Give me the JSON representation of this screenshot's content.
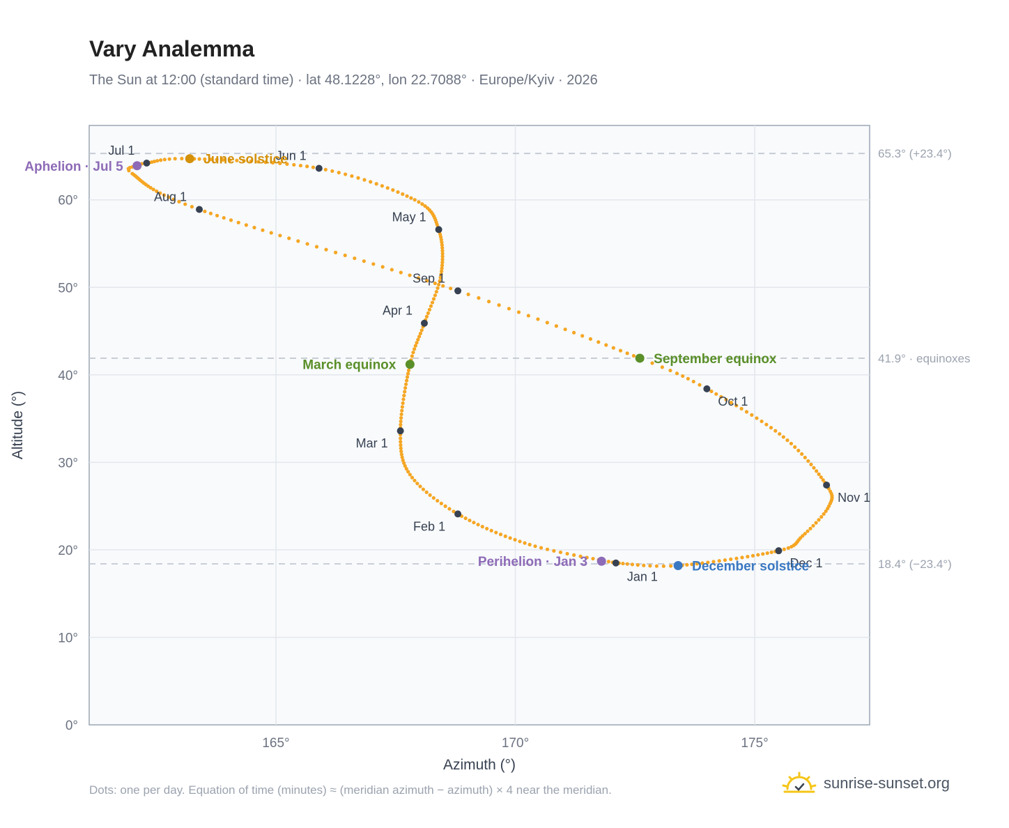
{
  "title": "Vary Analemma",
  "subtitle": "The Sun at 12:00 (standard time) · lat 48.1228°, lon 22.7088° · Europe/Kyiv · 2026",
  "footnote": "Dots: one per day. Equation of time (minutes) ≈ (meridian azimuth − azimuth) × 4 near the meridian.",
  "brand": {
    "name": "sunrise-sunset.org",
    "icon": "sun-icon"
  },
  "colors": {
    "path": "#f5a623",
    "month_marker": "#374151",
    "solstice_june": "#d4910a",
    "solstice_december": "#3a78c2",
    "equinox": "#5a8f29",
    "apsis": "#8e6bb7",
    "reference_line": "#c4c9d2",
    "plot_bg": "#f8fafc",
    "plot_border": "#9aa5b4"
  },
  "chart_data": {
    "type": "scatter",
    "xlabel": "Azimuth (°)",
    "ylabel": "Altitude (°)",
    "xlim": [
      161.1,
      177.4
    ],
    "ylim": [
      0,
      68.5
    ],
    "xticks": [
      165,
      170,
      175
    ],
    "xtick_labels": [
      "165°",
      "170°",
      "175°"
    ],
    "yticks": [
      0,
      10,
      20,
      30,
      40,
      50,
      60
    ],
    "ytick_labels": [
      "0°",
      "10°",
      "20°",
      "30°",
      "40°",
      "50°",
      "60°"
    ],
    "grid": true,
    "reference_lines": [
      {
        "y": 65.3,
        "label": "65.3° (+23.4°)"
      },
      {
        "y": 41.9,
        "label": "41.9° · equinoxes"
      },
      {
        "y": 18.4,
        "label": "18.4° (−23.4°)"
      }
    ],
    "path_anchors": [
      {
        "doy": 1,
        "az": 172.1,
        "alt": 18.5
      },
      {
        "doy": 16,
        "az": 170.3,
        "alt": 20.6
      },
      {
        "doy": 32,
        "az": 168.8,
        "alt": 24.1
      },
      {
        "doy": 46,
        "az": 167.8,
        "alt": 28.6
      },
      {
        "doy": 60,
        "az": 167.6,
        "alt": 33.6
      },
      {
        "doy": 79,
        "az": 167.8,
        "alt": 41.2
      },
      {
        "doy": 91,
        "az": 168.1,
        "alt": 45.9
      },
      {
        "doy": 105,
        "az": 168.45,
        "alt": 51.5
      },
      {
        "doy": 121,
        "az": 168.4,
        "alt": 56.6
      },
      {
        "doy": 135,
        "az": 167.9,
        "alt": 60.0
      },
      {
        "doy": 152,
        "az": 165.9,
        "alt": 63.6
      },
      {
        "doy": 172,
        "az": 163.2,
        "alt": 64.7
      },
      {
        "doy": 182,
        "az": 162.3,
        "alt": 64.2
      },
      {
        "doy": 186,
        "az": 162.1,
        "alt": 63.9
      },
      {
        "doy": 192,
        "az": 162.0,
        "alt": 63.0
      },
      {
        "doy": 213,
        "az": 163.4,
        "alt": 58.9
      },
      {
        "doy": 244,
        "az": 168.8,
        "alt": 49.6
      },
      {
        "doy": 265,
        "az": 172.6,
        "alt": 41.9
      },
      {
        "doy": 274,
        "az": 174.0,
        "alt": 38.4
      },
      {
        "doy": 290,
        "az": 175.6,
        "alt": 32.9
      },
      {
        "doy": 305,
        "az": 176.5,
        "alt": 27.4
      },
      {
        "doy": 314,
        "az": 176.55,
        "alt": 25.0
      },
      {
        "doy": 325,
        "az": 176.0,
        "alt": 21.6
      },
      {
        "doy": 335,
        "az": 175.5,
        "alt": 19.9
      },
      {
        "doy": 355,
        "az": 173.4,
        "alt": 18.2
      },
      {
        "doy": 366,
        "az": 172.1,
        "alt": 18.5
      }
    ],
    "month_markers": [
      {
        "label": "Jan 1",
        "az": 172.1,
        "alt": 18.5,
        "anchor": "start",
        "dx": 16,
        "dy": 26
      },
      {
        "label": "Feb 1",
        "az": 168.8,
        "alt": 24.1,
        "anchor": "end",
        "dx": -18,
        "dy": 24
      },
      {
        "label": "Mar 1",
        "az": 167.6,
        "alt": 33.6,
        "anchor": "end",
        "dx": -18,
        "dy": 24
      },
      {
        "label": "Apr 1",
        "az": 168.1,
        "alt": 45.9,
        "anchor": "end",
        "dx": -17,
        "dy": -12
      },
      {
        "label": "May 1",
        "az": 168.4,
        "alt": 56.6,
        "anchor": "end",
        "dx": -18,
        "dy": -12
      },
      {
        "label": "Jun 1",
        "az": 165.9,
        "alt": 63.6,
        "anchor": "end",
        "dx": -18,
        "dy": -12
      },
      {
        "label": "Jul 1",
        "az": 162.3,
        "alt": 64.2,
        "anchor": "end",
        "dx": -17,
        "dy": -12
      },
      {
        "label": "Aug 1",
        "az": 163.4,
        "alt": 58.9,
        "anchor": "end",
        "dx": -18,
        "dy": -12
      },
      {
        "label": "Sep 1",
        "az": 168.8,
        "alt": 49.6,
        "anchor": "end",
        "dx": -18,
        "dy": -12
      },
      {
        "label": "Oct 1",
        "az": 174.0,
        "alt": 38.4,
        "anchor": "start",
        "dx": 16,
        "dy": 24
      },
      {
        "label": "Nov 1",
        "az": 176.5,
        "alt": 27.4,
        "anchor": "start",
        "dx": 16,
        "dy": 24
      },
      {
        "label": "Dec 1",
        "az": 175.5,
        "alt": 19.9,
        "anchor": "start",
        "dx": 16,
        "dy": 24
      }
    ],
    "events": [
      {
        "label": "June solstice",
        "az": 163.2,
        "alt": 64.7,
        "color": "#d4910a",
        "anchor": "start",
        "dx": 20
      },
      {
        "label": "March equinox",
        "az": 167.8,
        "alt": 41.2,
        "color": "#5a8f29",
        "anchor": "end",
        "dx": -20
      },
      {
        "label": "September equinox",
        "az": 172.6,
        "alt": 41.9,
        "color": "#5a8f29",
        "anchor": "start",
        "dx": 20
      },
      {
        "label": "December solstice",
        "az": 173.4,
        "alt": 18.2,
        "color": "#3a78c2",
        "anchor": "start",
        "dx": 20
      },
      {
        "label": "Aphelion · Jul 5",
        "az": 162.1,
        "alt": 63.9,
        "color": "#8e6bb7",
        "anchor": "end",
        "dx": -20
      },
      {
        "label": "Perihelion · Jan 3",
        "az": 171.8,
        "alt": 18.7,
        "color": "#8e6bb7",
        "anchor": "end",
        "dx": -20
      }
    ]
  }
}
